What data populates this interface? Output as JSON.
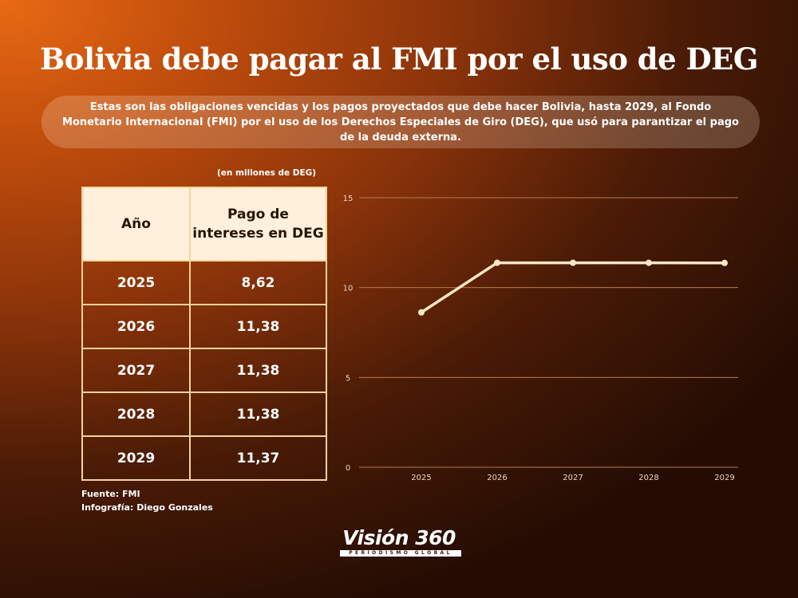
{
  "header": {
    "title": "Bolivia debe pagar al FMI por el uso de DEG",
    "subtitle": "Estas son las obligaciones vencidas y los pagos proyectados que debe hacer Bolivia, hasta 2029, al Fondo Monetario Internacional (FMI) por el uso de los Derechos Especiales de Giro (DEG), que usó para parantizar el pago de la deuda externa."
  },
  "table": {
    "units": "(en millones de DEG)",
    "col1_header": "Año",
    "col2_header": "Pago de intereses en DEG",
    "rows": [
      {
        "year": "2025",
        "value": "8,62"
      },
      {
        "year": "2026",
        "value": "11,38"
      },
      {
        "year": "2027",
        "value": "11,38"
      },
      {
        "year": "2028",
        "value": "11,38"
      },
      {
        "year": "2029",
        "value": "11,37"
      }
    ]
  },
  "footer": {
    "source": "Fuente: FMI",
    "credit": "Infografía: Diego Gonzales"
  },
  "logo": {
    "name": "Visión 360",
    "tagline": "PERIODISMO GLOBAL"
  },
  "colors": {
    "line": "#ffe7c7",
    "grid": "#b87a4d",
    "axis_text": "#f2d7bd",
    "table_border": "#f3d39a",
    "table_header_bg": "#fff0dc"
  },
  "chart_data": {
    "type": "line",
    "x": [
      "2025",
      "2026",
      "2027",
      "2028",
      "2029"
    ],
    "values": [
      8.62,
      11.38,
      11.38,
      11.38,
      11.37
    ],
    "yticks": [
      0,
      5,
      10,
      15
    ],
    "ylim": [
      0,
      15
    ],
    "grid": true,
    "legend": "none",
    "title": "",
    "xlabel": "",
    "ylabel": ""
  }
}
